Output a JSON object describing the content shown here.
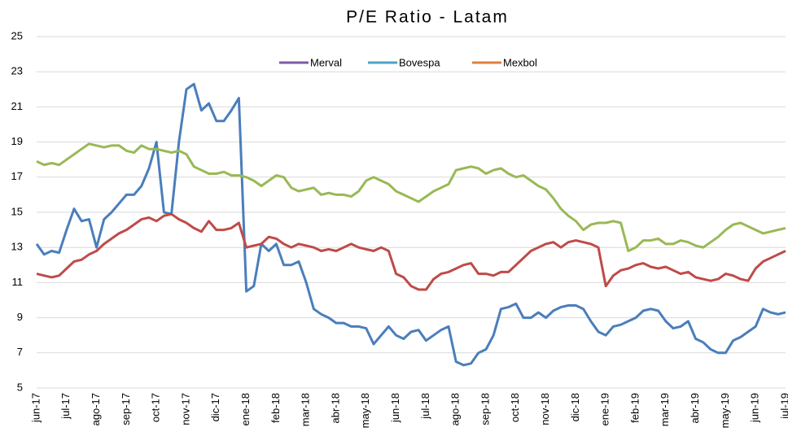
{
  "chart_data": {
    "type": "line",
    "title": "P/E Ratio - Latam",
    "categories": [
      "jun-17",
      null,
      null,
      null,
      "jul-17",
      null,
      null,
      null,
      "ago-17",
      null,
      null,
      null,
      "sep-17",
      null,
      null,
      null,
      "oct-17",
      null,
      null,
      null,
      "nov-17",
      null,
      null,
      null,
      "dic-17",
      null,
      null,
      null,
      "ene-18",
      null,
      null,
      null,
      "feb-18",
      null,
      null,
      null,
      "mar-18",
      null,
      null,
      null,
      "abr-18",
      null,
      null,
      null,
      "may-18",
      null,
      null,
      null,
      "jun-18",
      null,
      null,
      null,
      "jul-18",
      null,
      null,
      null,
      "ago-18",
      null,
      null,
      null,
      "sep-18",
      null,
      null,
      null,
      "oct-18",
      null,
      null,
      null,
      "nov-18",
      null,
      null,
      null,
      "dic-18",
      null,
      null,
      null,
      "ene-19",
      null,
      null,
      null,
      "feb-19",
      null,
      null,
      null,
      "mar-19",
      null,
      null,
      null,
      "abr-19",
      null,
      null,
      null,
      "may-19",
      null,
      null,
      null,
      "jun-19",
      null,
      null,
      null,
      "jul-19"
    ],
    "series": [
      {
        "name": "Merval",
        "color": "#4a7ebb",
        "legend_color": "#7b5aa6",
        "values": [
          13.2,
          12.6,
          12.8,
          12.7,
          14,
          15.2,
          14.5,
          14.6,
          13,
          14.6,
          15,
          15.5,
          16,
          16,
          16.5,
          17.5,
          19,
          15,
          14.9,
          19,
          22,
          22.3,
          20.8,
          21.2,
          20.2,
          20.2,
          20.8,
          21.5,
          10.5,
          10.8,
          13.2,
          12.8,
          13.2,
          12,
          12,
          12.2,
          11,
          9.5,
          9.2,
          9,
          8.7,
          8.7,
          8.5,
          8.5,
          8.4,
          7.5,
          8,
          8.5,
          8,
          7.8,
          8.2,
          8.3,
          7.7,
          8,
          8.3,
          8.5,
          6.5,
          6.3,
          6.4,
          7,
          7.2,
          8,
          9.5,
          9.6,
          9.8,
          9,
          9,
          9.3,
          9,
          9.4,
          9.6,
          9.7,
          9.7,
          9.5,
          8.8,
          8.2,
          8,
          8.5,
          8.6,
          8.8,
          9,
          9.4,
          9.5,
          9.4,
          8.8,
          8.4,
          8.5,
          8.8,
          7.8,
          7.6,
          7.2,
          7,
          7,
          7.7,
          7.9,
          8.2,
          8.5,
          9.5,
          9.3,
          9.2,
          9.3
        ]
      },
      {
        "name": "Bovespa",
        "color": "#be4b48",
        "legend_color": "#4aa3c8",
        "values": [
          11.5,
          11.4,
          11.3,
          11.4,
          11.8,
          12.2,
          12.3,
          12.6,
          12.8,
          13.2,
          13.5,
          13.8,
          14,
          14.3,
          14.6,
          14.7,
          14.5,
          14.8,
          14.9,
          14.6,
          14.4,
          14.1,
          13.9,
          14.5,
          14,
          14,
          14.1,
          14.4,
          13,
          13.1,
          13.2,
          13.6,
          13.5,
          13.2,
          13,
          13.2,
          13.1,
          13,
          12.8,
          12.9,
          12.8,
          13,
          13.2,
          13,
          12.9,
          12.8,
          13,
          12.8,
          11.5,
          11.3,
          10.8,
          10.6,
          10.6,
          11.2,
          11.5,
          11.6,
          11.8,
          12,
          12.1,
          11.5,
          11.5,
          11.4,
          11.6,
          11.6,
          12,
          12.4,
          12.8,
          13,
          13.2,
          13.3,
          13,
          13.3,
          13.4,
          13.3,
          13.2,
          13,
          10.8,
          11.4,
          11.7,
          11.8,
          12,
          12.1,
          11.9,
          11.8,
          11.9,
          11.7,
          11.5,
          11.6,
          11.3,
          11.2,
          11.1,
          11.2,
          11.5,
          11.4,
          11.2,
          11.1,
          11.8,
          12.2,
          12.4,
          12.6,
          12.8
        ]
      },
      {
        "name": "Mexbol",
        "color": "#98b954",
        "legend_color": "#e0813a",
        "values": [
          17.9,
          17.7,
          17.8,
          17.7,
          18,
          18.3,
          18.6,
          18.9,
          18.8,
          18.7,
          18.8,
          18.8,
          18.5,
          18.4,
          18.8,
          18.6,
          18.6,
          18.5,
          18.4,
          18.5,
          18.3,
          17.6,
          17.4,
          17.2,
          17.2,
          17.3,
          17.1,
          17.1,
          17,
          16.8,
          16.5,
          16.8,
          17.1,
          17,
          16.4,
          16.2,
          16.3,
          16.4,
          16,
          16.1,
          16,
          16,
          15.9,
          16.2,
          16.8,
          17,
          16.8,
          16.6,
          16.2,
          16,
          15.8,
          15.6,
          15.9,
          16.2,
          16.4,
          16.6,
          17.4,
          17.5,
          17.6,
          17.5,
          17.2,
          17.4,
          17.5,
          17.2,
          17,
          17.1,
          16.8,
          16.5,
          16.3,
          15.8,
          15.2,
          14.8,
          14.5,
          14,
          14.3,
          14.4,
          14.4,
          14.5,
          14.4,
          12.8,
          13,
          13.4,
          13.4,
          13.5,
          13.2,
          13.2,
          13.4,
          13.3,
          13.1,
          13,
          13.3,
          13.6,
          14,
          14.3,
          14.4,
          14.2,
          14,
          13.8,
          13.9,
          14,
          14.1
        ]
      }
    ],
    "ylim": [
      5,
      25
    ],
    "yticks": [
      5,
      7,
      9,
      11,
      13,
      15,
      17,
      19,
      21,
      23,
      25
    ],
    "grid": true
  }
}
